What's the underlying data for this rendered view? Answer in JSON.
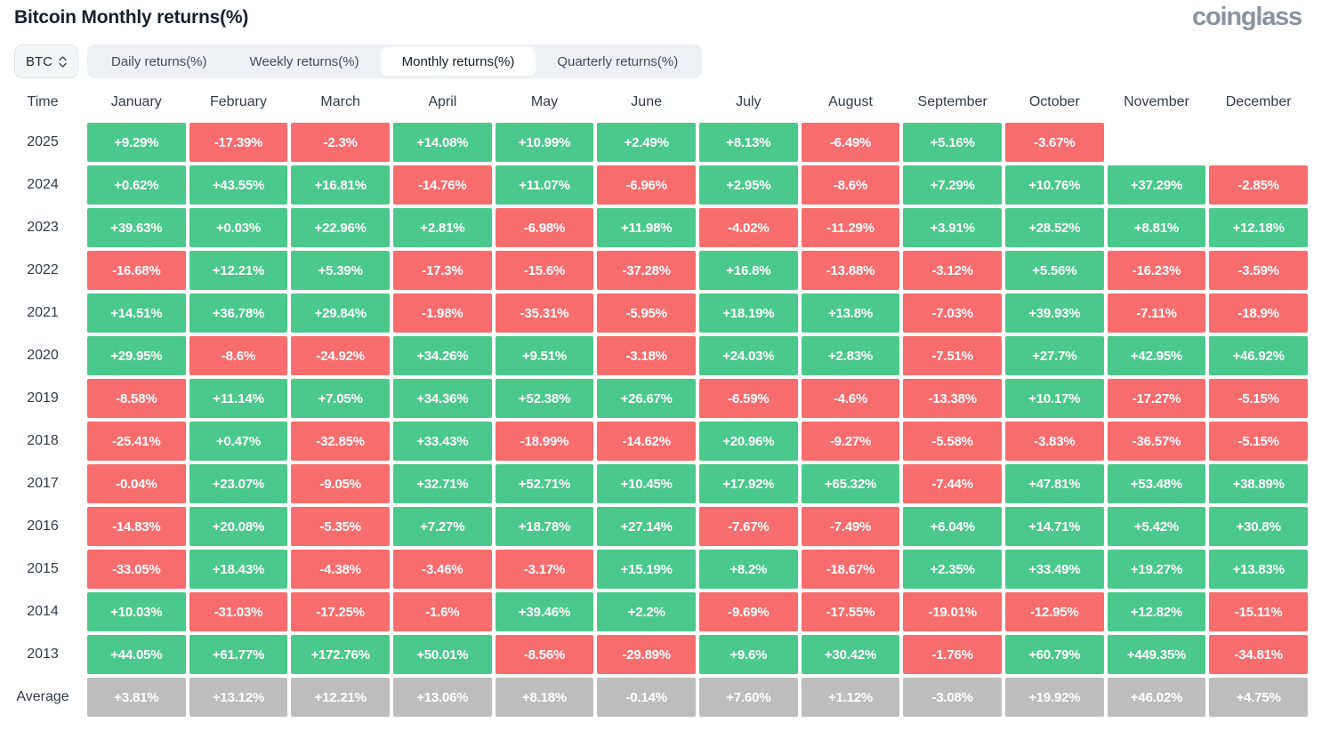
{
  "header": {
    "title": "Bitcoin Monthly returns(%)",
    "logo": "coinglass"
  },
  "controls": {
    "symbol": "BTC",
    "tabs": [
      {
        "label": "Daily returns(%)",
        "active": false
      },
      {
        "label": "Weekly returns(%)",
        "active": false
      },
      {
        "label": "Monthly returns(%)",
        "active": true
      },
      {
        "label": "Quarterly returns(%)",
        "active": false
      }
    ]
  },
  "chart_data": {
    "type": "heatmap",
    "title": "Bitcoin Monthly returns(%)",
    "columns": [
      "Time",
      "January",
      "February",
      "March",
      "April",
      "May",
      "June",
      "July",
      "August",
      "September",
      "October",
      "November",
      "December"
    ],
    "rows": [
      {
        "label": "2025",
        "values": [
          "+9.29%",
          "-17.39%",
          "-2.3%",
          "+14.08%",
          "+10.99%",
          "+2.49%",
          "+8.13%",
          "-6.49%",
          "+5.16%",
          "-3.67%",
          "",
          ""
        ]
      },
      {
        "label": "2024",
        "values": [
          "+0.62%",
          "+43.55%",
          "+16.81%",
          "-14.76%",
          "+11.07%",
          "-6.96%",
          "+2.95%",
          "-8.6%",
          "+7.29%",
          "+10.76%",
          "+37.29%",
          "-2.85%"
        ]
      },
      {
        "label": "2023",
        "values": [
          "+39.63%",
          "+0.03%",
          "+22.96%",
          "+2.81%",
          "-6.98%",
          "+11.98%",
          "-4.02%",
          "-11.29%",
          "+3.91%",
          "+28.52%",
          "+8.81%",
          "+12.18%"
        ]
      },
      {
        "label": "2022",
        "values": [
          "-16.68%",
          "+12.21%",
          "+5.39%",
          "-17.3%",
          "-15.6%",
          "-37.28%",
          "+16.8%",
          "-13.88%",
          "-3.12%",
          "+5.56%",
          "-16.23%",
          "-3.59%"
        ]
      },
      {
        "label": "2021",
        "values": [
          "+14.51%",
          "+36.78%",
          "+29.84%",
          "-1.98%",
          "-35.31%",
          "-5.95%",
          "+18.19%",
          "+13.8%",
          "-7.03%",
          "+39.93%",
          "-7.11%",
          "-18.9%"
        ]
      },
      {
        "label": "2020",
        "values": [
          "+29.95%",
          "-8.6%",
          "-24.92%",
          "+34.26%",
          "+9.51%",
          "-3.18%",
          "+24.03%",
          "+2.83%",
          "-7.51%",
          "+27.7%",
          "+42.95%",
          "+46.92%"
        ]
      },
      {
        "label": "2019",
        "values": [
          "-8.58%",
          "+11.14%",
          "+7.05%",
          "+34.36%",
          "+52.38%",
          "+26.67%",
          "-6.59%",
          "-4.6%",
          "-13.38%",
          "+10.17%",
          "-17.27%",
          "-5.15%"
        ]
      },
      {
        "label": "2018",
        "values": [
          "-25.41%",
          "+0.47%",
          "-32.85%",
          "+33.43%",
          "-18.99%",
          "-14.62%",
          "+20.96%",
          "-9.27%",
          "-5.58%",
          "-3.83%",
          "-36.57%",
          "-5.15%"
        ]
      },
      {
        "label": "2017",
        "values": [
          "-0.04%",
          "+23.07%",
          "-9.05%",
          "+32.71%",
          "+52.71%",
          "+10.45%",
          "+17.92%",
          "+65.32%",
          "-7.44%",
          "+47.81%",
          "+53.48%",
          "+38.89%"
        ]
      },
      {
        "label": "2016",
        "values": [
          "-14.83%",
          "+20.08%",
          "-5.35%",
          "+7.27%",
          "+18.78%",
          "+27.14%",
          "-7.67%",
          "-7.49%",
          "+6.04%",
          "+14.71%",
          "+5.42%",
          "+30.8%"
        ]
      },
      {
        "label": "2015",
        "values": [
          "-33.05%",
          "+18.43%",
          "-4.38%",
          "-3.46%",
          "-3.17%",
          "+15.19%",
          "+8.2%",
          "-18.67%",
          "+2.35%",
          "+33.49%",
          "+19.27%",
          "+13.83%"
        ]
      },
      {
        "label": "2014",
        "values": [
          "+10.03%",
          "-31.03%",
          "-17.25%",
          "-1.6%",
          "+39.46%",
          "+2.2%",
          "-9.69%",
          "-17.55%",
          "-19.01%",
          "-12.95%",
          "+12.82%",
          "-15.11%"
        ]
      },
      {
        "label": "2013",
        "values": [
          "+44.05%",
          "+61.77%",
          "+172.76%",
          "+50.01%",
          "-8.56%",
          "-29.89%",
          "+9.6%",
          "+30.42%",
          "-1.76%",
          "+60.79%",
          "+449.35%",
          "-34.81%"
        ]
      },
      {
        "label": "Average",
        "average": true,
        "values": [
          "+3.81%",
          "+13.12%",
          "+12.21%",
          "+13.06%",
          "+8.18%",
          "-0.14%",
          "+7.60%",
          "+1.12%",
          "-3.08%",
          "+19.92%",
          "+46.02%",
          "+4.75%"
        ]
      }
    ],
    "colors": {
      "positive": "#4bc88b",
      "negative": "#f76c6c",
      "average": "#bdbdbd"
    }
  }
}
